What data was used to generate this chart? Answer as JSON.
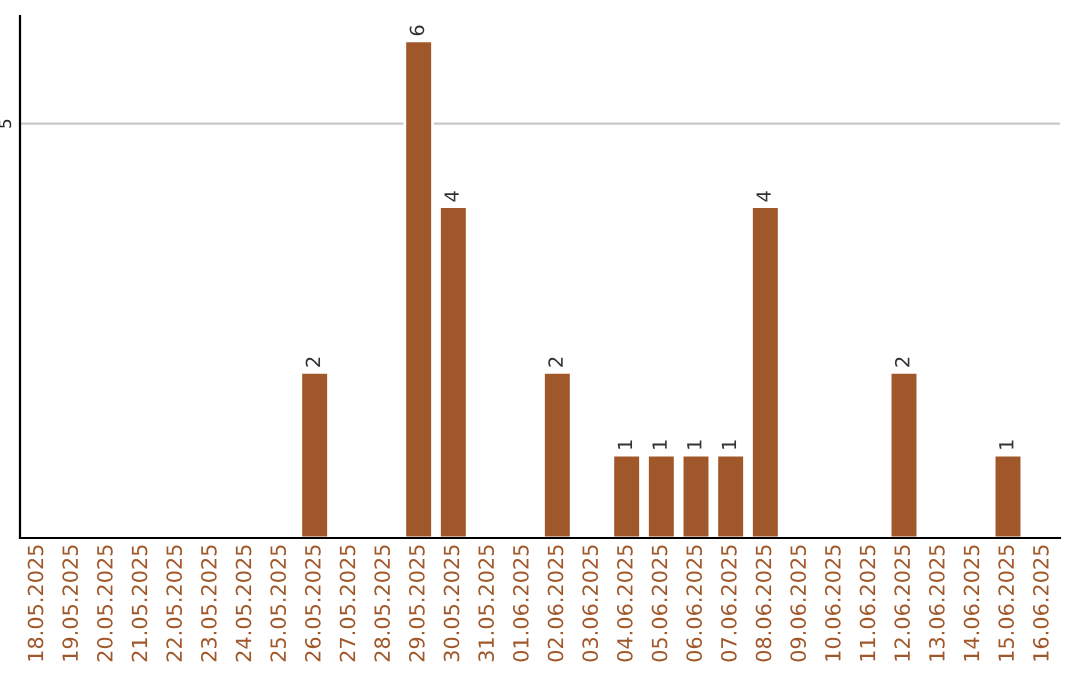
{
  "chart_data": {
    "type": "bar",
    "categories": [
      "18.05.2025",
      "19.05.2025",
      "20.05.2025",
      "21.05.2025",
      "22.05.2025",
      "23.05.2025",
      "24.05.2025",
      "25.05.2025",
      "26.05.2025",
      "27.05.2025",
      "28.05.2025",
      "29.05.2025",
      "30.05.2025",
      "31.05.2025",
      "01.06.2025",
      "02.06.2025",
      "03.06.2025",
      "04.06.2025",
      "05.06.2025",
      "06.06.2025",
      "07.06.2025",
      "08.06.2025",
      "09.06.2025",
      "10.06.2025",
      "11.06.2025",
      "12.06.2025",
      "13.06.2025",
      "14.06.2025",
      "15.06.2025",
      "16.06.2025"
    ],
    "values": [
      null,
      null,
      null,
      null,
      null,
      null,
      null,
      null,
      2,
      null,
      null,
      6,
      4,
      null,
      null,
      2,
      null,
      1,
      1,
      1,
      1,
      4,
      null,
      null,
      null,
      2,
      null,
      null,
      1,
      null
    ],
    "color": "#a0582b",
    "ylim": [
      0,
      6.3
    ],
    "yticks": [
      5
    ],
    "grid": "y",
    "data_labels": true
  }
}
